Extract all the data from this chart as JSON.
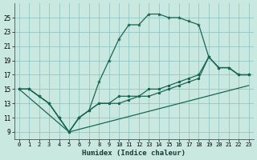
{
  "xlabel": "Humidex (Indice chaleur)",
  "bg_color": "#c8e8e0",
  "line_color": "#1a6655",
  "grid_color": "#8bbfbf",
  "xlim": [
    -0.5,
    23.5
  ],
  "ylim": [
    8.0,
    27.0
  ],
  "xticks": [
    0,
    1,
    2,
    3,
    4,
    5,
    6,
    7,
    8,
    9,
    10,
    11,
    12,
    13,
    14,
    15,
    16,
    17,
    18,
    19,
    20,
    21,
    22,
    23
  ],
  "yticks": [
    9,
    11,
    13,
    15,
    17,
    19,
    21,
    23,
    25
  ],
  "curve_main": {
    "x": [
      0,
      1,
      2,
      3,
      4,
      5,
      6,
      7,
      8,
      9,
      10,
      11,
      12,
      13,
      14,
      15,
      16,
      17,
      18,
      19,
      20,
      21,
      22,
      23
    ],
    "y": [
      15,
      15,
      14,
      13,
      11,
      9,
      11,
      12,
      16,
      19,
      22,
      24,
      24,
      25.5,
      25.5,
      25,
      25,
      24.5,
      24,
      19.5,
      18,
      18,
      17,
      17
    ]
  },
  "curve_line1": {
    "x": [
      0,
      1,
      2,
      3,
      4,
      5,
      6,
      7,
      8,
      9,
      10,
      11,
      12,
      13,
      14,
      15,
      16,
      17,
      18,
      19,
      20,
      21,
      22,
      23
    ],
    "y": [
      15,
      15,
      14,
      13,
      11,
      9,
      11,
      12,
      13,
      13,
      14,
      14,
      14,
      15,
      15,
      15.5,
      16,
      16.5,
      17,
      19.5,
      18,
      18,
      17,
      17
    ]
  },
  "curve_line2": {
    "x": [
      0,
      1,
      2,
      3,
      4,
      5,
      6,
      7,
      8,
      9,
      10,
      11,
      12,
      13,
      14,
      15,
      16,
      17,
      18,
      19,
      20,
      21,
      22,
      23
    ],
    "y": [
      15,
      15,
      14,
      13,
      11,
      9,
      11,
      12,
      13,
      13,
      13,
      13.5,
      14,
      14,
      14.5,
      15,
      15.5,
      16,
      16.5,
      19.5,
      18,
      18,
      17,
      17
    ]
  },
  "curve_diag": {
    "x": [
      0,
      5,
      23
    ],
    "y": [
      15,
      9,
      15.5
    ]
  }
}
